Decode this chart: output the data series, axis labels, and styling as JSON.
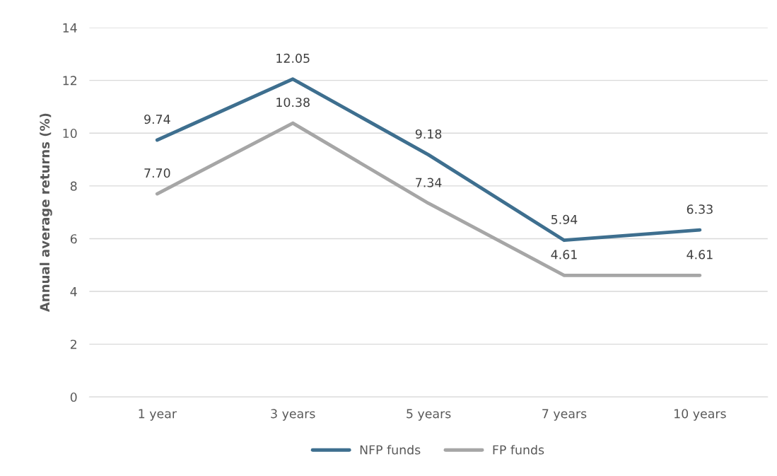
{
  "chart_data": {
    "type": "line",
    "ylabel": "Annual average returns (%)",
    "categories": [
      "1 year",
      "3 years",
      "5 years",
      "7 years",
      "10 years"
    ],
    "series": [
      {
        "name": "NFP funds",
        "color": "#3e6f8f",
        "values": [
          9.74,
          12.05,
          9.18,
          5.94,
          6.33
        ],
        "value_labels": [
          "9.74",
          "12.05",
          "9.18",
          "5.94",
          "6.33"
        ]
      },
      {
        "name": "FP funds",
        "color": "#a6a6a6",
        "values": [
          7.7,
          10.38,
          7.34,
          4.61,
          4.61
        ],
        "value_labels": [
          "7.70",
          "10.38",
          "7.34",
          "4.61",
          "4.61"
        ]
      }
    ],
    "ylim": [
      0,
      14
    ],
    "yticks": [
      0,
      2,
      4,
      6,
      8,
      10,
      12,
      14
    ],
    "grid": "y",
    "legend": "bottom",
    "marker": "none",
    "line_style": "solid"
  }
}
